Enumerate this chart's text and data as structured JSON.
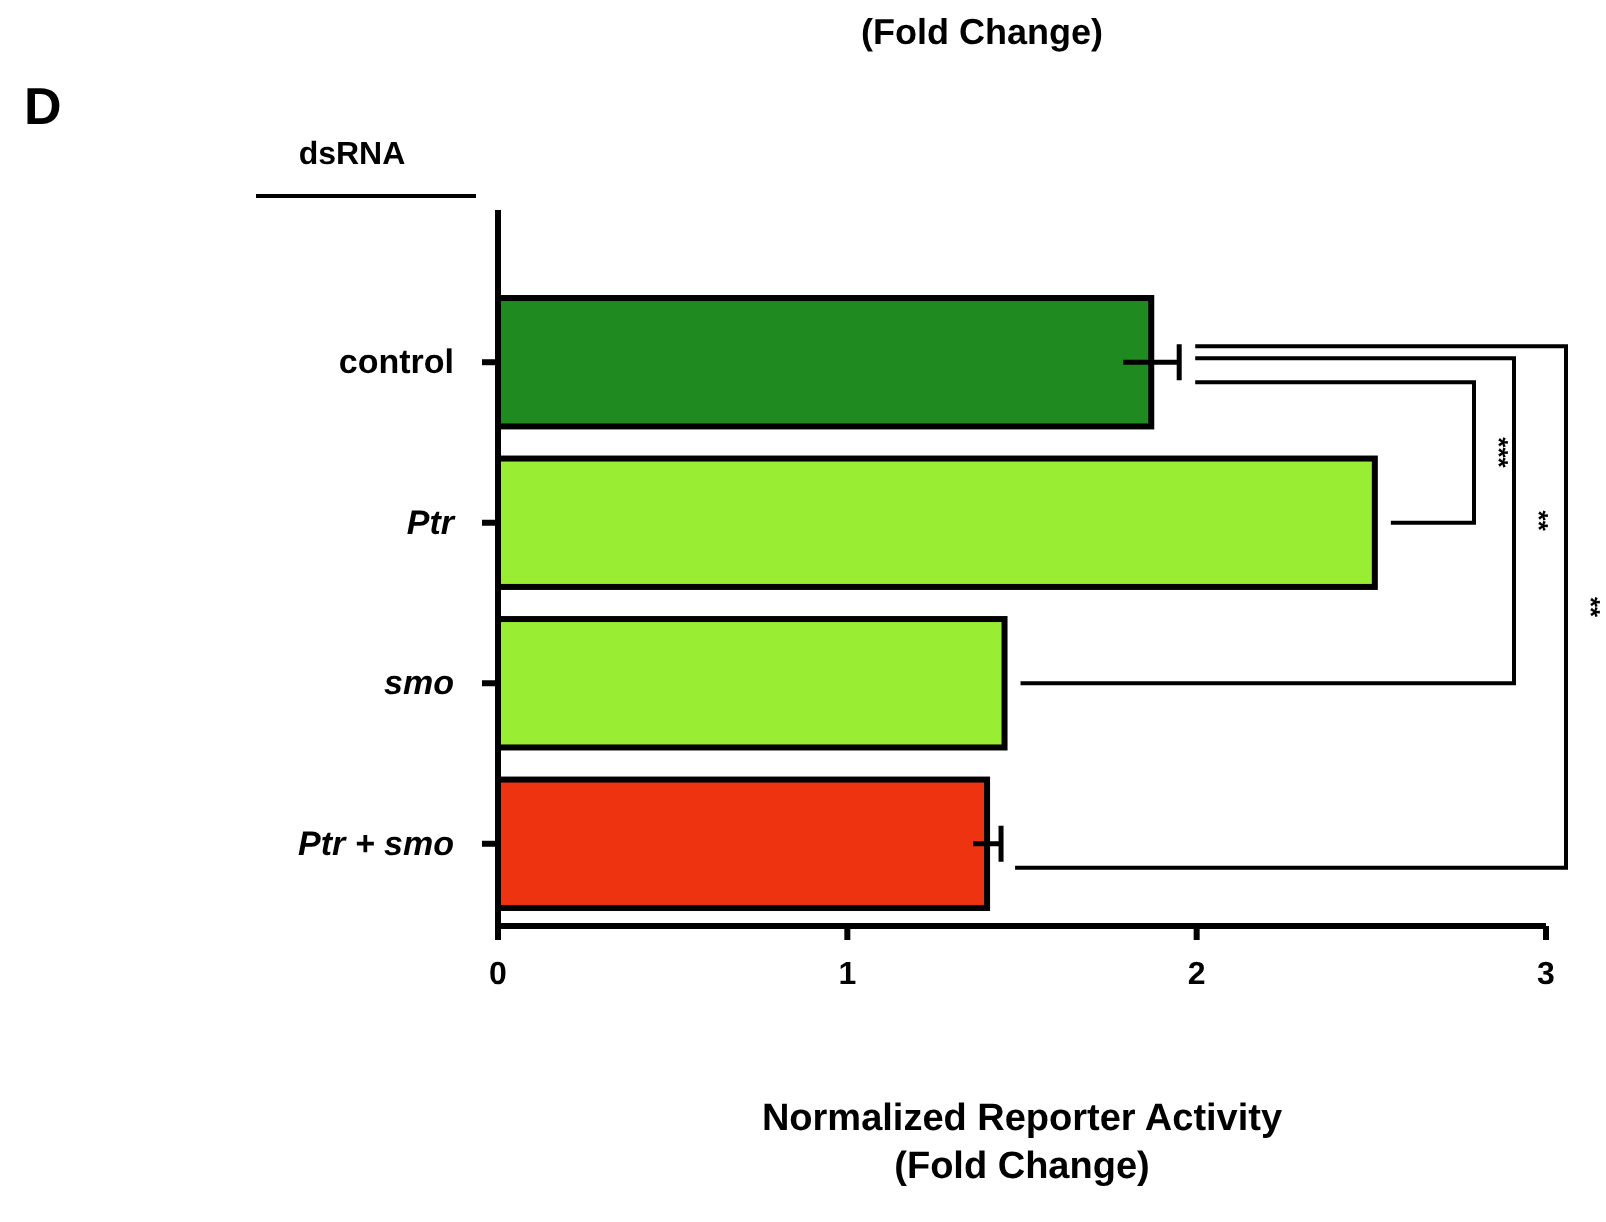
{
  "chart_data": {
    "type": "bar",
    "orientation": "horizontal",
    "xlabel": "Normalized Reporter Activity\n(Fold Change)",
    "categories": [
      "control",
      "Ptr",
      "smo",
      "Ptr + smo"
    ],
    "values": [
      1.87,
      2.51,
      1.45,
      1.4
    ],
    "colors": [
      "#1f8a1f",
      "#99ee33",
      "#99ee33",
      "#ee3311"
    ],
    "errors": [
      0.08,
      null,
      null,
      0.04
    ],
    "xlim": [
      0,
      3
    ],
    "xticks": [
      0,
      1,
      2,
      3
    ],
    "grid": false,
    "annotations": [
      "(Fold Change)",
      "D",
      "dsRNA",
      "***",
      "**",
      "**"
    ]
  }
}
